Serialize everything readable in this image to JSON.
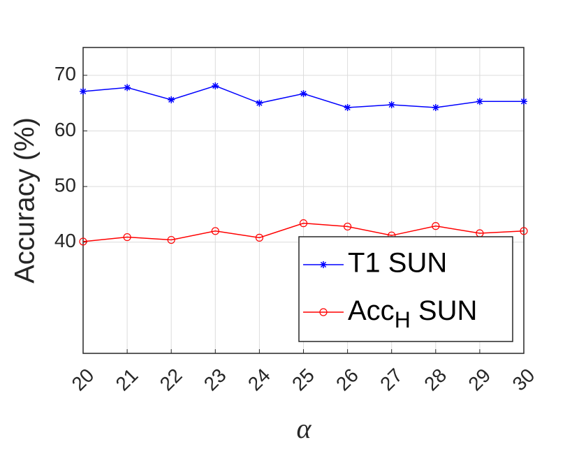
{
  "chart_data": {
    "type": "line",
    "x_label": "α",
    "y_label": "Accuracy (%)",
    "x": [
      20,
      21,
      22,
      23,
      24,
      25,
      26,
      27,
      28,
      29,
      30
    ],
    "series": [
      {
        "name": "T1 SUN",
        "color": "#0000ff",
        "marker": "star",
        "values": [
          67.1,
          67.8,
          65.6,
          68.1,
          65.0,
          66.7,
          64.2,
          64.7,
          64.2,
          65.3,
          65.3
        ]
      },
      {
        "name": "Acc_H SUN",
        "color": "#ff0000",
        "marker": "circle",
        "values": [
          40.1,
          40.9,
          40.4,
          42.0,
          40.8,
          43.4,
          42.8,
          41.2,
          42.9,
          41.6,
          42.0
        ]
      }
    ],
    "xlim": [
      20,
      30
    ],
    "xticks": [
      20,
      21,
      22,
      23,
      24,
      25,
      26,
      27,
      28,
      29,
      30
    ],
    "ylim": [
      20,
      75
    ],
    "yticks": [
      40,
      50,
      60,
      70
    ],
    "grid": true,
    "legend": "lower right"
  }
}
